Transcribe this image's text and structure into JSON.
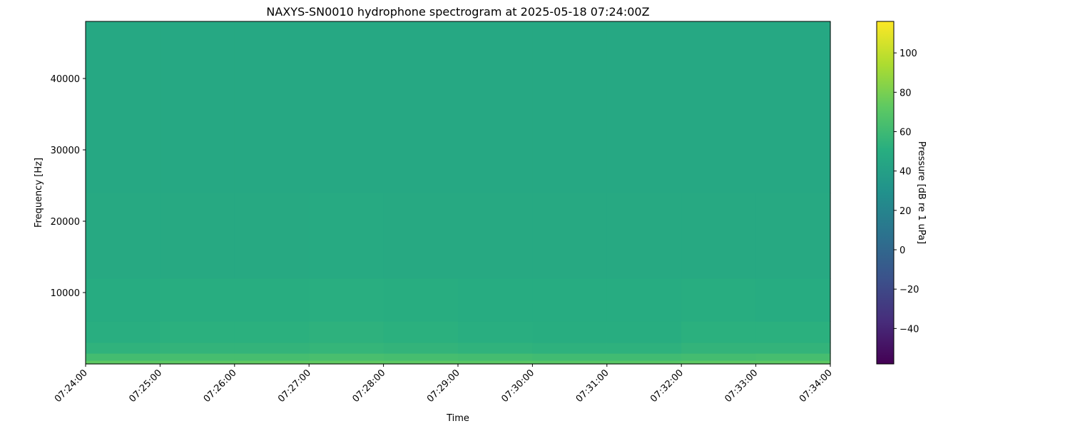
{
  "chart_data": {
    "type": "heatmap",
    "title": "NAXYS-SN0010 hydrophone spectrogram at 2025-05-18 07:24:00Z",
    "xlabel": "Time",
    "ylabel": "Frequency [Hz]",
    "colorbar_label": "Pressure [dB re 1 uPa]",
    "colormap": "viridis",
    "x_ticks": [
      "07:24:00",
      "07:25:00",
      "07:26:00",
      "07:27:00",
      "07:28:00",
      "07:29:00",
      "07:30:00",
      "07:31:00",
      "07:32:00",
      "07:33:00",
      "07:34:00"
    ],
    "y_ticks": [
      10000,
      20000,
      30000,
      40000
    ],
    "ylim": [
      0,
      48000
    ],
    "colorbar_ticks": [
      -40,
      -20,
      0,
      20,
      40,
      60,
      80,
      100
    ],
    "clim": [
      -58,
      116
    ],
    "grid": false,
    "freq_bands_hz": [
      0,
      500,
      1500,
      3000,
      6000,
      12000,
      24000,
      48000
    ],
    "levels_db_by_minute": [
      [
        72,
        62,
        54,
        51,
        49,
        47,
        46
      ],
      [
        72,
        63,
        55,
        52,
        50,
        47,
        46
      ],
      [
        73,
        63,
        55,
        52,
        50,
        47,
        46
      ],
      [
        73,
        64,
        56,
        53,
        51,
        48,
        46
      ],
      [
        72,
        63,
        55,
        52,
        50,
        47,
        46
      ],
      [
        71,
        62,
        54,
        51,
        49,
        47,
        46
      ],
      [
        70,
        61,
        53,
        50,
        49,
        47,
        46
      ],
      [
        70,
        61,
        53,
        50,
        49,
        47,
        46
      ],
      [
        72,
        62,
        55,
        52,
        50,
        47,
        46
      ],
      [
        72,
        63,
        55,
        52,
        49,
        47,
        46
      ]
    ]
  }
}
